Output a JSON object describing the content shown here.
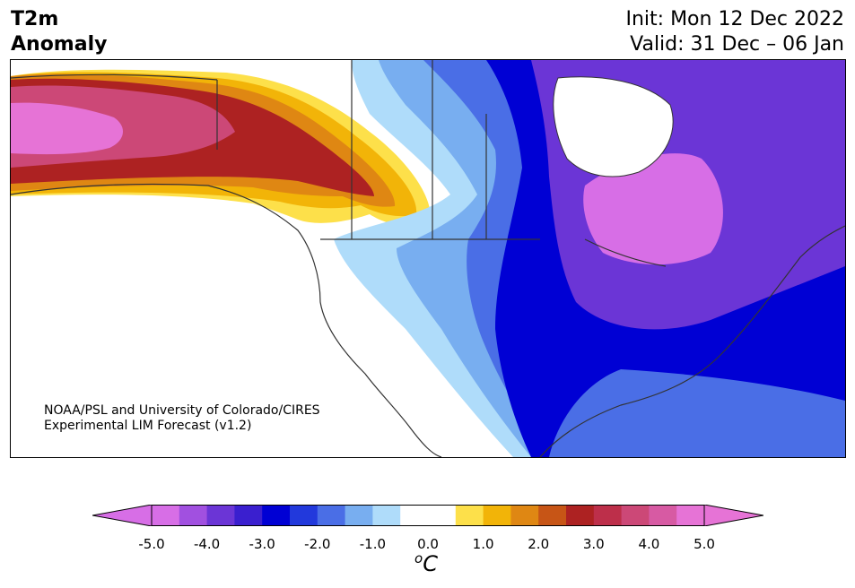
{
  "header": {
    "title_line1": "T2m",
    "title_line2": "Anomaly",
    "init": "Init: Mon 12 Dec 2022",
    "valid": "Valid: 31 Dec – 06 Jan"
  },
  "credit": {
    "line1": "NOAA/PSL and University of Colorado/CIRES",
    "line2": "Experimental LIM Forecast (v1.2)"
  },
  "colorbar": {
    "unit_symbol": "o",
    "unit_letter": "C",
    "tick_labels": [
      "-5.0",
      "-4.0",
      "-3.0",
      "-2.0",
      "-1.0",
      "0.0",
      "1.0",
      "2.0",
      "3.0",
      "4.0",
      "5.0"
    ],
    "colors": [
      "#d76ee6",
      "#a150e0",
      "#6b35d6",
      "#3a1fcf",
      "#0000d4",
      "#2239dc",
      "#4a6ee6",
      "#78aef0",
      "#afdcfa",
      "#ffffff",
      "#ffffff",
      "#fde04a",
      "#f2b408",
      "#df8713",
      "#c75516",
      "#ad2222",
      "#bd2f4a",
      "#cc4877",
      "#d75aa3",
      "#e673d6"
    ],
    "min_extension_color": "#d76ee6",
    "max_extension_color": "#e673d6"
  },
  "colors": {
    "land_outline": "#333333",
    "warm_core": "#ad2222",
    "cold_core": "#0000d4"
  }
}
